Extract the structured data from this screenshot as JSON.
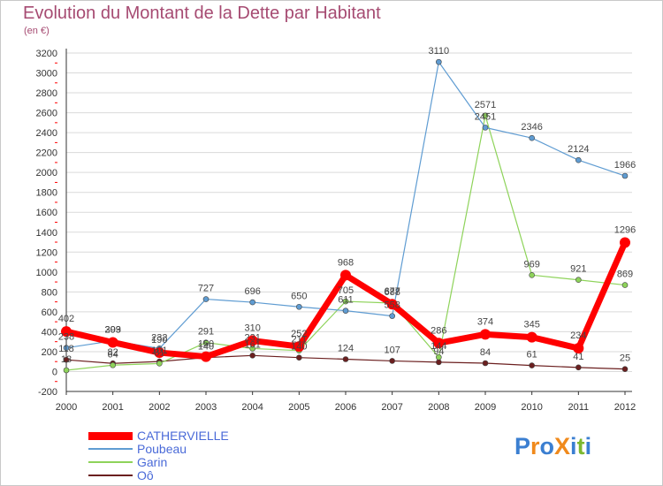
{
  "header": {
    "title": "Evolution du Montant de la Dette par Habitant",
    "subtitle": "(en €)"
  },
  "colors": {
    "title": "#a64b72",
    "legend_text": "#4a6ad8",
    "grid": "#dadada",
    "axis": "#333333",
    "tick_mark_accent": "#ff0000"
  },
  "logo": {
    "text": "ProXiti",
    "letters": [
      "P",
      "r",
      "o",
      "X",
      "i",
      "t",
      "i"
    ],
    "letter_colors": [
      "#3b7fd1",
      "#f08a1c",
      "#3b7fd1",
      "#f08a1c",
      "#3b7fd1",
      "#7cb82f",
      "#3b7fd1"
    ]
  },
  "chart_data": {
    "type": "line",
    "title": "Evolution du Montant de la Dette par Habitant",
    "subtitle": "(en €)",
    "xlabel": "",
    "ylabel": "",
    "x": [
      "2000",
      "2001",
      "2002",
      "2003",
      "2004",
      "2005",
      "2006",
      "2007",
      "2008",
      "2009",
      "2010",
      "2011",
      "2012"
    ],
    "ylim": [
      -200,
      3200
    ],
    "yticks": [
      -200,
      0,
      200,
      400,
      600,
      800,
      1000,
      1200,
      1400,
      1600,
      1800,
      2000,
      2200,
      2400,
      2600,
      2800,
      3000,
      3200
    ],
    "grid": true,
    "legend_position": "bottom-left",
    "series": [
      {
        "name": "CATHERVIELLE",
        "color": "#ff0000",
        "width": 7,
        "marker": 6,
        "values": [
          402,
          293,
          190,
          150,
          310,
          252,
          968,
          677,
          286,
          374,
          345,
          234,
          1296
        ]
      },
      {
        "name": "Poubeau",
        "color": "#5f9cd2",
        "width": 1.2,
        "marker": 3,
        "values": [
          238,
          309,
          232,
          727,
          696,
          650,
          611,
          558,
          3110,
          2451,
          2346,
          2124,
          1966
        ]
      },
      {
        "name": "Garin",
        "color": "#8ed35a",
        "width": 1.2,
        "marker": 3,
        "values": [
          13,
          64,
          81,
          291,
          231,
          211,
          705,
          688,
          144,
          2571,
          969,
          921,
          869
        ]
      },
      {
        "name": "Oô",
        "color": "#6b1f1f",
        "width": 1.2,
        "marker": 3,
        "values": [
          118,
          82,
          101,
          140,
          161,
          140,
          124,
          107,
          94,
          84,
          61,
          41,
          25
        ]
      }
    ]
  }
}
